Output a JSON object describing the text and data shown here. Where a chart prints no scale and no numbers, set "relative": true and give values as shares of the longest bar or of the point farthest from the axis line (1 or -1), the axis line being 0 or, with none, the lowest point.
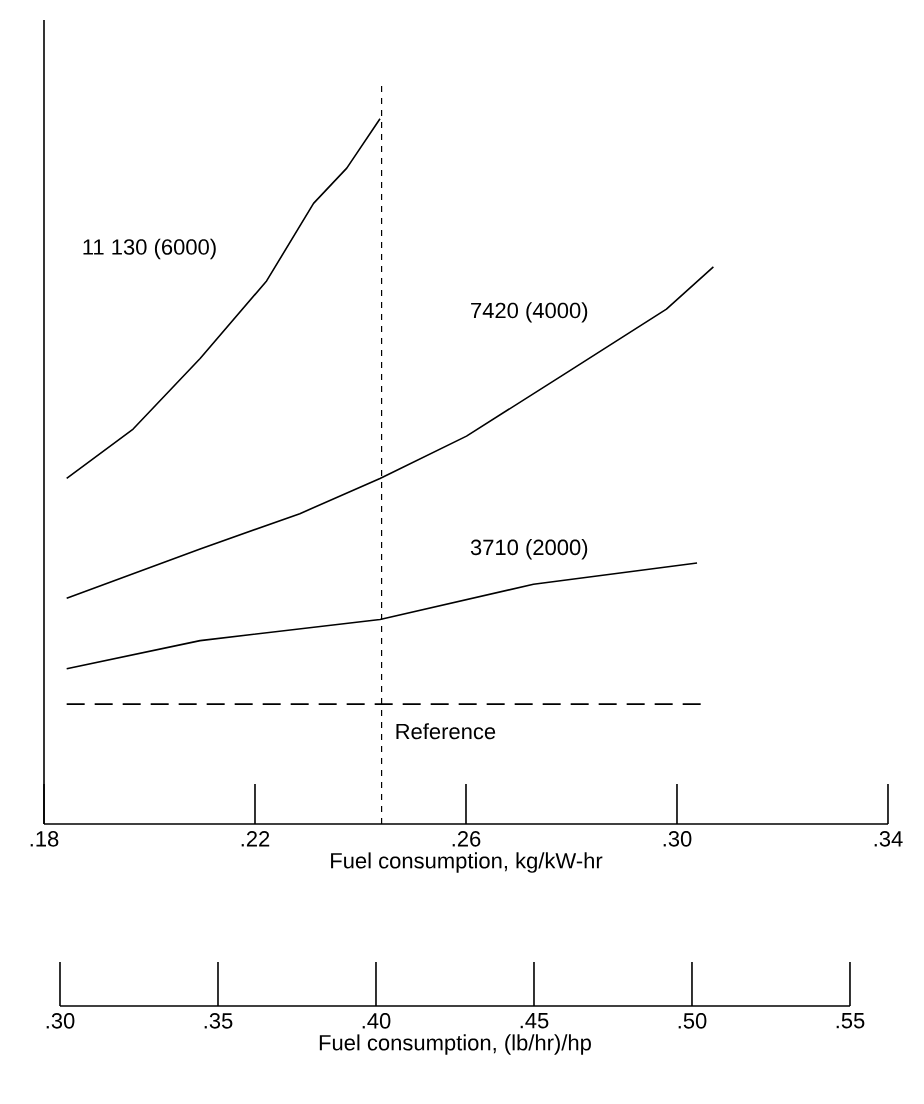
{
  "chart_data": {
    "type": "line",
    "relative": true,
    "xlabel": "Fuel consumption, kg/kW-hr",
    "xlim": [
      0.18,
      0.34
    ],
    "xticks": [
      {
        "value": 0.18,
        "label": ".18"
      },
      {
        "value": 0.22,
        "label": ".22"
      },
      {
        "value": 0.26,
        "label": ".26"
      },
      {
        "value": 0.3,
        "label": ".30"
      },
      {
        "value": 0.34,
        "label": ".34"
      }
    ],
    "x2lim": [
      0.3,
      0.55
    ],
    "x2ticks": [
      {
        "value": 0.3,
        "label": ".30"
      },
      {
        "value": 0.35,
        "label": ".35"
      },
      {
        "value": 0.4,
        "label": ".40"
      },
      {
        "value": 0.45,
        "label": ".45"
      },
      {
        "value": 0.5,
        "label": ".50"
      },
      {
        "value": 0.55,
        "label": ".55"
      }
    ],
    "x2label": "Fuel consumption, (lb/hr)/hp",
    "series": [
      {
        "name": "11 130 (6000)",
        "color": "#000000",
        "x": [
          0.1843,
          0.1969,
          0.2096,
          0.2222,
          0.2311,
          0.2374,
          0.2437
        ],
        "values": [
          0.49,
          0.56,
          0.66,
          0.77,
          0.88,
          0.93,
          1.0
        ]
      },
      {
        "name": "7420 (4000)",
        "color": "#000000",
        "x": [
          0.1843,
          0.2096,
          0.2285,
          0.2437,
          0.2601,
          0.2791,
          0.298,
          0.3069
        ],
        "values": [
          0.32,
          0.39,
          0.44,
          0.49,
          0.55,
          0.64,
          0.73,
          0.79
        ]
      },
      {
        "name": "3710 (2000)",
        "color": "#000000",
        "x": [
          0.1843,
          0.2096,
          0.2437,
          0.2728,
          0.3038
        ],
        "values": [
          0.22,
          0.26,
          0.29,
          0.34,
          0.37
        ]
      }
    ],
    "ref_lines": [
      {
        "axis": "y",
        "value": 0.17,
        "label": "Reference",
        "line_style": "dashed"
      },
      {
        "axis": "x",
        "value": 0.244,
        "line_style": "dashed"
      }
    ],
    "grid": false,
    "legend": false,
    "marker": "none",
    "line_style": "solid"
  }
}
